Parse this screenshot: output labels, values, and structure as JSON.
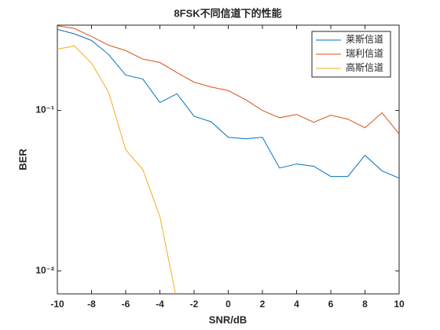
{
  "chart_data": {
    "type": "line",
    "title": "8FSK不同信道下的性能",
    "xlabel": "SNR/dB",
    "ylabel": "BER",
    "x": [
      -10,
      -9,
      -8,
      -7,
      -6,
      -5,
      -4,
      -3,
      -2,
      -1,
      0,
      1,
      2,
      3,
      4,
      5,
      6,
      7,
      8,
      9,
      10
    ],
    "series": [
      {
        "name": "莱斯信道",
        "color": "#0072BD",
        "values": [
          0.32,
          0.3,
          0.273,
          0.223,
          0.166,
          0.157,
          0.112,
          0.127,
          0.092,
          0.085,
          0.068,
          0.0666,
          0.068,
          0.0438,
          0.0464,
          0.0449,
          0.0388,
          0.0388,
          0.0526,
          0.042,
          0.0379
        ]
      },
      {
        "name": "瑞利信道",
        "color": "#D95319",
        "values": [
          0.337,
          0.324,
          0.289,
          0.255,
          0.236,
          0.209,
          0.199,
          0.172,
          0.15,
          0.14,
          0.133,
          0.117,
          0.1,
          0.09,
          0.0945,
          0.0844,
          0.0934,
          0.0883,
          0.078,
          0.0967,
          0.0713
        ]
      },
      {
        "name": "高斯信道",
        "color": "#EDB120",
        "values": [
          0.241,
          0.252,
          0.197,
          0.13,
          0.0569,
          0.0429,
          0.0218,
          0.0065,
          null,
          null,
          null,
          null,
          null,
          null,
          null,
          null,
          null,
          null,
          null,
          null,
          null
        ]
      }
    ],
    "xlim": [
      -10,
      10
    ],
    "xticks": [
      -10,
      -8,
      -6,
      -4,
      -2,
      0,
      2,
      4,
      6,
      8,
      10
    ],
    "ylim": [
      0.0072,
      0.34
    ],
    "ylog": true,
    "yticks": [
      {
        "value": 0.01,
        "label": "10⁻²"
      },
      {
        "value": 0.1,
        "label": "10⁻¹"
      }
    ],
    "legend": "upper right"
  }
}
